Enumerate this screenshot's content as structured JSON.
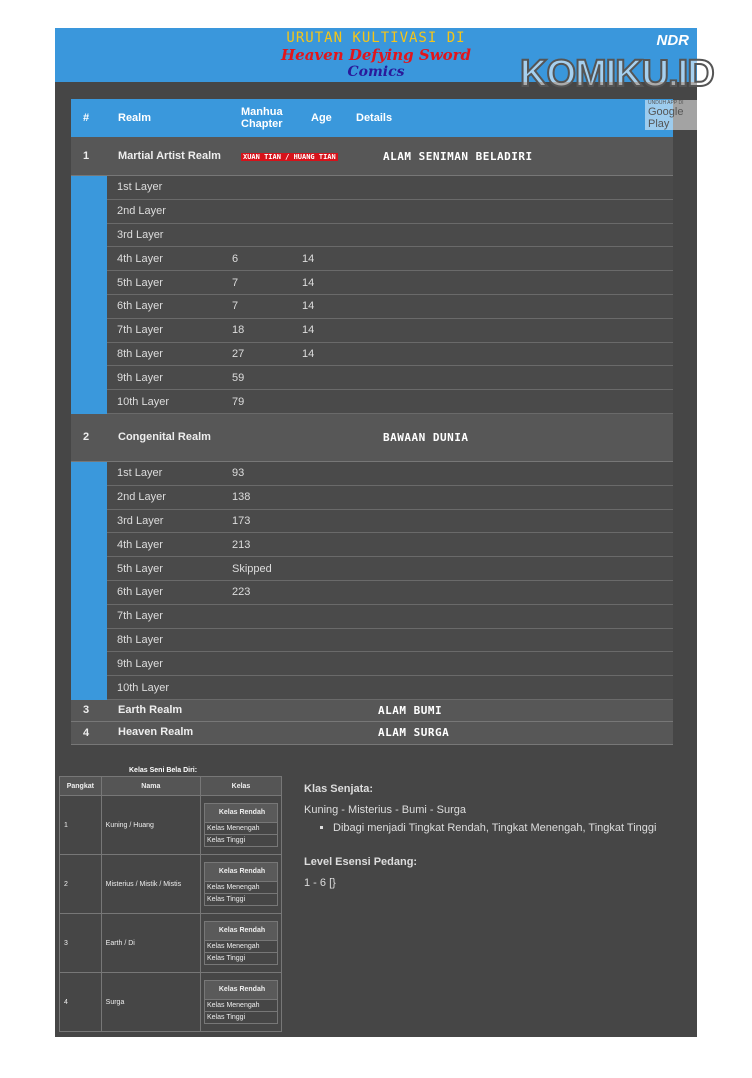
{
  "header": {
    "line1": "URUTAN KULTIVASI DI",
    "line2": "Heaven Defying Sword",
    "line3": "Comics",
    "logo": "NDR",
    "watermark": "KOMIKU.ID",
    "watermark_sub": "UNDUH APP DI",
    "watermark_store": "Google Play"
  },
  "table": {
    "headers": [
      "#",
      "Realm",
      "Manhua Chapter",
      "Age",
      "Details"
    ],
    "realms": [
      {
        "num": "1",
        "name": "Martial Artist Realm",
        "chapter_badge": "XUAN TIAN / HUANG TIAN",
        "details": "ALAM SENIMAN BELADIRI",
        "layers": [
          {
            "name": "1st Layer",
            "chapter": "",
            "age": ""
          },
          {
            "name": "2nd Layer",
            "chapter": "",
            "age": ""
          },
          {
            "name": "3rd Layer",
            "chapter": "",
            "age": ""
          },
          {
            "name": "4th Layer",
            "chapter": "6",
            "age": "14"
          },
          {
            "name": "5th Layer",
            "chapter": "7",
            "age": "14"
          },
          {
            "name": "6th Layer",
            "chapter": "7",
            "age": "14"
          },
          {
            "name": "7th Layer",
            "chapter": "18",
            "age": "14"
          },
          {
            "name": "8th Layer",
            "chapter": "27",
            "age": "14"
          },
          {
            "name": "9th Layer",
            "chapter": "59",
            "age": ""
          },
          {
            "name": "10th Layer",
            "chapter": "79",
            "age": ""
          }
        ]
      },
      {
        "num": "2",
        "name": "Congenital Realm",
        "chapter_badge": "",
        "details": "BAWAAN DUNIA",
        "layers": [
          {
            "name": "1st Layer",
            "chapter": "93",
            "age": ""
          },
          {
            "name": "2nd Layer",
            "chapter": "138",
            "age": ""
          },
          {
            "name": "3rd Layer",
            "chapter": "173",
            "age": ""
          },
          {
            "name": "4th Layer",
            "chapter": "213",
            "age": ""
          },
          {
            "name": "5th Layer",
            "chapter": "Skipped",
            "age": ""
          },
          {
            "name": "6th Layer",
            "chapter": "223",
            "age": ""
          },
          {
            "name": "7th Layer",
            "chapter": "",
            "age": ""
          },
          {
            "name": "8th Layer",
            "chapter": "",
            "age": ""
          },
          {
            "name": "9th Layer",
            "chapter": "",
            "age": ""
          },
          {
            "name": "10th Layer",
            "chapter": "",
            "age": ""
          }
        ]
      },
      {
        "num": "3",
        "name": "Earth Realm",
        "details": "ALAM BUMI"
      },
      {
        "num": "4",
        "name": "Heaven Realm",
        "details": "ALAM SURGA"
      }
    ]
  },
  "kelas": {
    "caption": "Kelas Seni Bela Diri:",
    "headers": [
      "Pangkat",
      "Nama",
      "Kelas"
    ],
    "rows": [
      {
        "rank": "1",
        "name": "Kuning / Huang"
      },
      {
        "rank": "2",
        "name": "Misterius / Mistik / Mistis"
      },
      {
        "rank": "3",
        "name": "Earth / Di"
      },
      {
        "rank": "4",
        "name": "Surga"
      }
    ],
    "classes": [
      "Kelas Rendah",
      "Kelas Menengah",
      "Kelas Tinggi"
    ]
  },
  "right": {
    "title1": "Klas Senjata:",
    "text1": "Kuning - Misterius - Bumi - Surga",
    "bullet": "Dibagi menjadi Tingkat Rendah, Tingkat Menengah, Tingkat Tinggi",
    "title2": "Level Esensi Pedang:",
    "text2": "1 - 6 [}"
  }
}
